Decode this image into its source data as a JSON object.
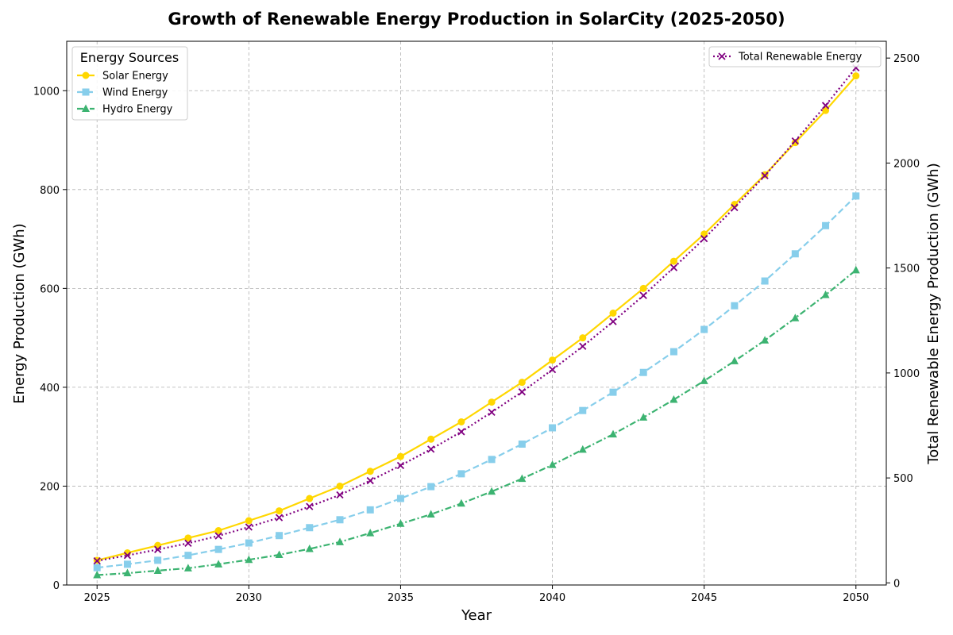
{
  "chart_data": {
    "type": "line",
    "title": "Growth of Renewable Energy Production in SolarCity (2025-2050)",
    "xlabel": "Year",
    "ylabel": "Energy Production (GWh)",
    "y2label": "Total Renewable Energy Production (GWh)",
    "x": [
      2025,
      2026,
      2027,
      2028,
      2029,
      2030,
      2031,
      2032,
      2033,
      2034,
      2035,
      2036,
      2037,
      2038,
      2039,
      2040,
      2041,
      2042,
      2043,
      2044,
      2045,
      2046,
      2047,
      2048,
      2049,
      2050
    ],
    "xticks": [
      2025,
      2030,
      2035,
      2040,
      2045,
      2050
    ],
    "xlim": [
      2024.0,
      2051.0
    ],
    "ylim": [
      0,
      1100
    ],
    "yticks": [
      0,
      200,
      400,
      600,
      800,
      1000
    ],
    "y2lim": [
      -10,
      2580
    ],
    "y2ticks": [
      0,
      500,
      1000,
      1500,
      2000,
      2500
    ],
    "grid": true,
    "legend_left": {
      "title": "Energy Sources",
      "placement": "top-left",
      "entries": [
        "Solar Energy",
        "Wind Energy",
        "Hydro Energy"
      ]
    },
    "legend_right": {
      "placement": "top-right",
      "entries": [
        "Total Renewable Energy"
      ]
    },
    "series": [
      {
        "name": "Solar Energy",
        "axis": "left",
        "color": "#FFD700",
        "linestyle": "solid",
        "marker": "circle",
        "values": [
          50,
          65,
          80,
          95,
          110,
          130,
          150,
          175,
          200,
          230,
          260,
          295,
          330,
          370,
          410,
          455,
          500,
          550,
          600,
          655,
          710,
          770,
          830,
          895,
          960,
          1030
        ]
      },
      {
        "name": "Wind Energy",
        "axis": "left",
        "color": "#87CEEB",
        "linestyle": "dashed",
        "marker": "square",
        "values": [
          35,
          42,
          50,
          60,
          72,
          85,
          100,
          116,
          132,
          152,
          175,
          199,
          225,
          254,
          285,
          318,
          353,
          390,
          430,
          472,
          517,
          565,
          615,
          670,
          727,
          787
        ]
      },
      {
        "name": "Hydro Energy",
        "axis": "left",
        "color": "#3CB371",
        "linestyle": "dashdot",
        "marker": "triangle",
        "values": [
          20,
          24,
          29,
          34,
          42,
          51,
          61,
          73,
          87,
          105,
          124,
          143,
          165,
          189,
          215,
          243,
          274,
          305,
          339,
          375,
          413,
          453,
          495,
          540,
          587,
          637
        ]
      },
      {
        "name": "Total Renewable Energy",
        "axis": "right",
        "color": "#800080",
        "linestyle": "dotted",
        "marker": "x",
        "values": [
          105,
          131,
          159,
          189,
          224,
          266,
          311,
          364,
          419,
          487,
          559,
          637,
          720,
          813,
          910,
          1016,
          1127,
          1245,
          1369,
          1502,
          1640,
          1788,
          1940,
          2105,
          2274,
          2454
        ]
      }
    ]
  }
}
